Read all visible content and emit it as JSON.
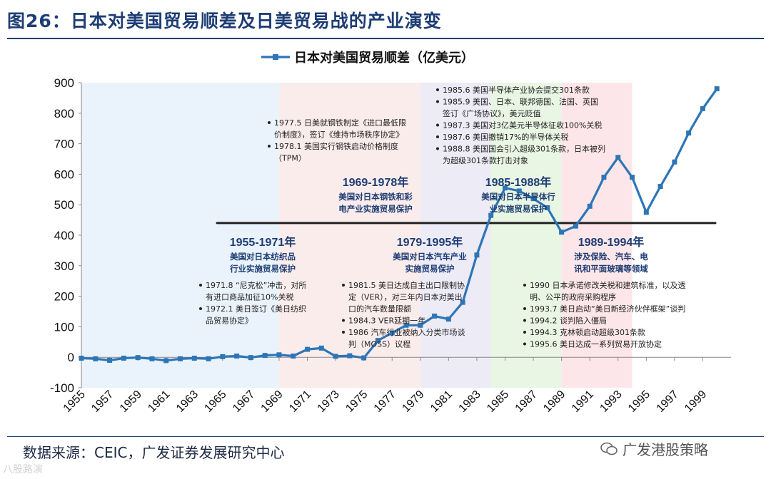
{
  "figure": {
    "title": "图26：日本对美国贸易顺差及日美贸易战的产业演变",
    "source": "数据来源：CEIC，广发证券发展研究中心",
    "watermark": "广发港股策略",
    "watermark2": "八股路演"
  },
  "chart_data": {
    "type": "line",
    "title": "",
    "legend": [
      "日本对美国贸易顺差（亿美元）"
    ],
    "legend_position": "top-center",
    "xlabel": "",
    "ylabel": "",
    "ylim": [
      -100,
      900
    ],
    "yticks": [
      -100,
      0,
      100,
      200,
      300,
      400,
      500,
      600,
      700,
      800,
      900
    ],
    "xlim": [
      1955,
      2001
    ],
    "xticks": [
      1955,
      1957,
      1959,
      1961,
      1963,
      1965,
      1967,
      1969,
      1971,
      1973,
      1975,
      1977,
      1979,
      1981,
      1983,
      1985,
      1987,
      1989,
      1991,
      1993,
      1995,
      1997,
      1999
    ],
    "series": [
      {
        "name": "日本对美国贸易顺差（亿美元）",
        "color": "#2e75b6",
        "x": [
          1955,
          1956,
          1957,
          1958,
          1959,
          1960,
          1961,
          1962,
          1963,
          1964,
          1965,
          1966,
          1967,
          1968,
          1969,
          1970,
          1971,
          1972,
          1973,
          1974,
          1975,
          1976,
          1977,
          1978,
          1979,
          1980,
          1981,
          1982,
          1983,
          1984,
          1985,
          1986,
          1987,
          1988,
          1989,
          1990,
          1991,
          1992,
          1993,
          1994,
          1995,
          1996,
          1997,
          1998,
          1999,
          2000
        ],
        "values": [
          -3,
          -5,
          -10,
          -3,
          -1,
          -5,
          -11,
          -5,
          -3,
          -5,
          2,
          4,
          -1,
          6,
          8,
          4,
          26,
          30,
          3,
          5,
          -2,
          55,
          80,
          105,
          105,
          135,
          125,
          180,
          335,
          465,
          555,
          545,
          520,
          490,
          410,
          430,
          495,
          590,
          655,
          590,
          475,
          560,
          640,
          735,
          815,
          880
        ]
      }
    ],
    "reference_line": {
      "y": 440,
      "color": "#222222"
    },
    "shaded_periods": [
      {
        "from": 1955,
        "to": 1969,
        "color": "#eaf3fb"
      },
      {
        "from": 1969,
        "to": 1979,
        "color": "#fbecec"
      },
      {
        "from": 1979,
        "to": 1984,
        "color": "#ecebf6"
      },
      {
        "from": 1984,
        "to": 1989,
        "color": "#e8f6e3"
      },
      {
        "from": 1989,
        "to": 1994,
        "color": "#fde6e9"
      }
    ],
    "period_labels": [
      {
        "head": "1955-1971年",
        "lines": [
          "美国对日本纺织品",
          "行业实施贸易保护"
        ]
      },
      {
        "head": "1969-1978年",
        "lines": [
          "美国对日本钢铁和彩",
          "电产业实施贸易保护"
        ]
      },
      {
        "head": "1979-1995年",
        "lines": [
          "美国对日本汽车产业",
          "实施贸易保护"
        ]
      },
      {
        "head": "1985-1988年",
        "lines": [
          "美国对日本半导体行",
          "业实施贸易保护"
        ]
      },
      {
        "head": "1989-1994年",
        "lines": [
          "涉及保险、汽车、电",
          "讯和平面玻璃等领域"
        ]
      }
    ],
    "event_notes": [
      [
        "1971.8 “尼克松”冲击，对所",
        "有进口商品加征10%关税",
        "1972.1 美日签订《美日纺织",
        "品贸易协定》"
      ],
      [
        "1977.5 日美就钢铁制定《进口最低限",
        "价制度》，签订《维持市场秩序协定》",
        "1978.1 美国实行钢铁启动价格制度",
        "（TPM）"
      ],
      [
        "1981.5 美日达成自主出口限制协",
        "定（VER），对三年内日本对美出",
        "口的汽车数量限额",
        "1984.3 VER延期一年",
        "1986 汽车行业被纳入分类市场谈",
        "判（MOSS）议程"
      ],
      [
        "1985.6 美国半导体产业协会提交301条款",
        "1985.9 美国、日本、联邦德国、法国、英国",
        "签订《广场协议》，美元贬值",
        "1987.3 美国对3亿美元半导体征收100%关税",
        "1987.6 美国撤销17%的半导体关税",
        "1988.8 美国国会引入超级301条款，日本被列",
        "为超级301条款打击对象"
      ],
      [
        "1990 日本承诺修改关税和建筑标准，以及透",
        "明、公平的政府采购程序",
        "1993.7 美日启动“美日新经济伙伴框架”谈判",
        "1994.2 谈判陷入僵局",
        "1994.3 克林顿启动超级301条款",
        "1995.6 美日达成一系列贸易开放协定"
      ]
    ]
  }
}
